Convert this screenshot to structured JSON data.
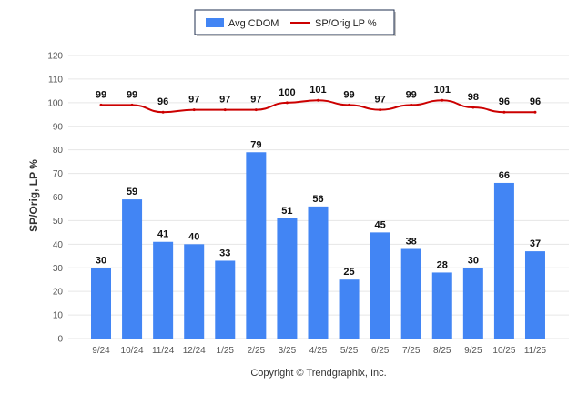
{
  "chart_data": {
    "type": "bar",
    "categories": [
      "9/24",
      "10/24",
      "11/24",
      "12/24",
      "1/25",
      "2/25",
      "3/25",
      "4/25",
      "5/25",
      "6/25",
      "7/25",
      "8/25",
      "9/25",
      "10/25",
      "11/25"
    ],
    "series": [
      {
        "name": "Avg CDOM",
        "type": "bar",
        "color": "#4285f4",
        "values": [
          30,
          59,
          41,
          40,
          33,
          79,
          51,
          56,
          25,
          45,
          38,
          28,
          30,
          66,
          37
        ]
      },
      {
        "name": "SP/Orig LP %",
        "type": "line",
        "color": "#cc0000",
        "values": [
          99,
          99,
          96,
          97,
          97,
          97,
          100,
          101,
          99,
          97,
          99,
          101,
          98,
          96,
          96
        ]
      }
    ],
    "ylabel": "SP/Orig, LP %",
    "xlabel": "",
    "ylim": [
      0,
      120
    ],
    "yticks": [
      0,
      10,
      20,
      30,
      40,
      50,
      60,
      70,
      80,
      90,
      100,
      110,
      120
    ],
    "grid": true,
    "legend_position": "top-center"
  },
  "footer": {
    "copyright": "Copyright © Trendgraphix, Inc."
  }
}
